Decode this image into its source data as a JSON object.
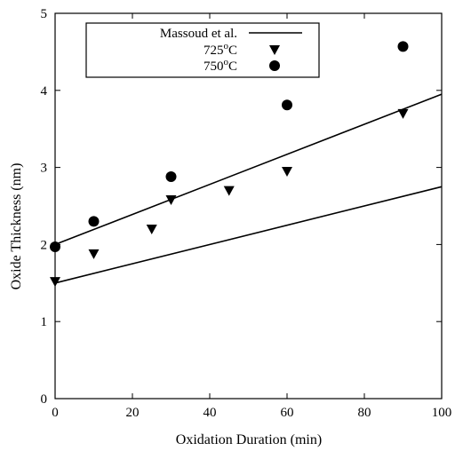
{
  "chart_data": {
    "type": "scatter",
    "xlabel": "Oxidation Duration  (min)",
    "ylabel": "Oxide Thickness (nm)",
    "xlim": [
      0,
      100
    ],
    "ylim": [
      0,
      5
    ],
    "xticks": [
      "0",
      "20",
      "40",
      "60",
      "80",
      "100"
    ],
    "yticks": [
      "0",
      "1",
      "2",
      "3",
      "4",
      "5"
    ],
    "legend_position": "top-center",
    "lines": [
      {
        "legend_ref": "massoud",
        "x": [
          0,
          100
        ],
        "y": [
          1.5,
          2.75
        ]
      },
      {
        "legend_ref": "massoud",
        "x": [
          0,
          100
        ],
        "y": [
          2.0,
          3.95
        ]
      }
    ],
    "series": [
      {
        "name": "725°C",
        "marker": "triangle-down",
        "x": [
          0,
          10,
          25,
          30,
          45,
          60,
          90
        ],
        "y": [
          1.52,
          1.88,
          2.2,
          2.58,
          2.7,
          2.95,
          3.7
        ]
      },
      {
        "name": "750°C",
        "marker": "circle",
        "x": [
          0,
          10,
          30,
          60,
          90
        ],
        "y": [
          1.97,
          2.3,
          2.88,
          3.81,
          4.57
        ]
      }
    ],
    "legend": {
      "massoud": "Massoud et al.",
      "s725_main": "725",
      "s725_sup": "o",
      "s725_tail": "C",
      "s750_main": "750",
      "s750_sup": "o",
      "s750_tail": "C"
    }
  }
}
